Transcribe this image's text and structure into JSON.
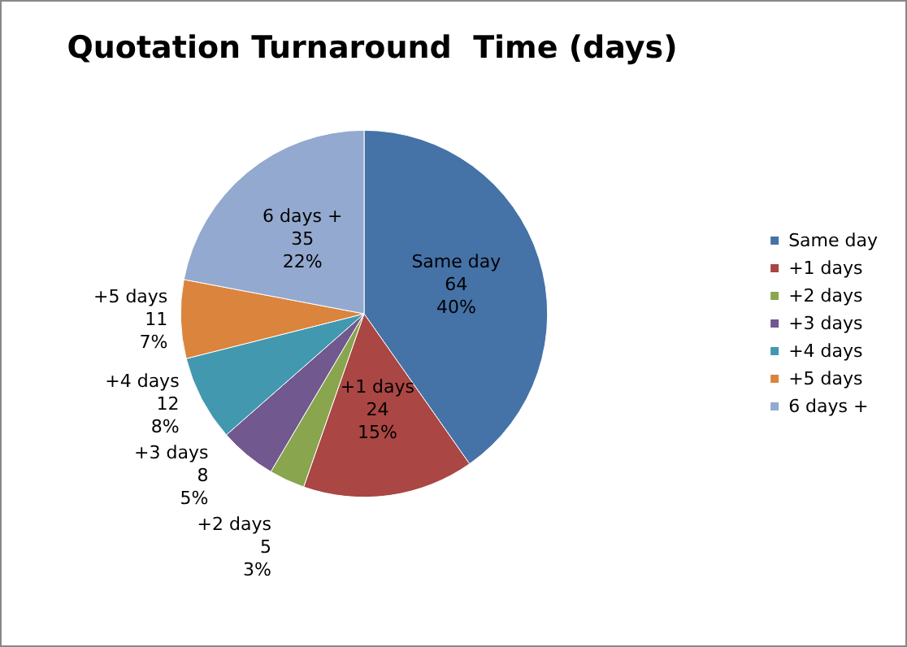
{
  "chart_data": {
    "type": "pie",
    "title": "Quotation Turnaround  Time (days)",
    "categories": [
      "Same day",
      "+1 days",
      "+2 days",
      "+3 days",
      "+4 days",
      "+5 days",
      "6 days +"
    ],
    "values": [
      64,
      24,
      5,
      8,
      12,
      11,
      35
    ],
    "colors": [
      "#4572a7",
      "#aa4643",
      "#89a54e",
      "#71588f",
      "#4198af",
      "#db843d",
      "#93a9cf"
    ],
    "value_labels": [
      "64\n40%",
      "24\n15%",
      "5\n3%",
      "8\n5%",
      "12\n8%",
      "11\n7%",
      "35\n22%"
    ],
    "legend": "right"
  }
}
